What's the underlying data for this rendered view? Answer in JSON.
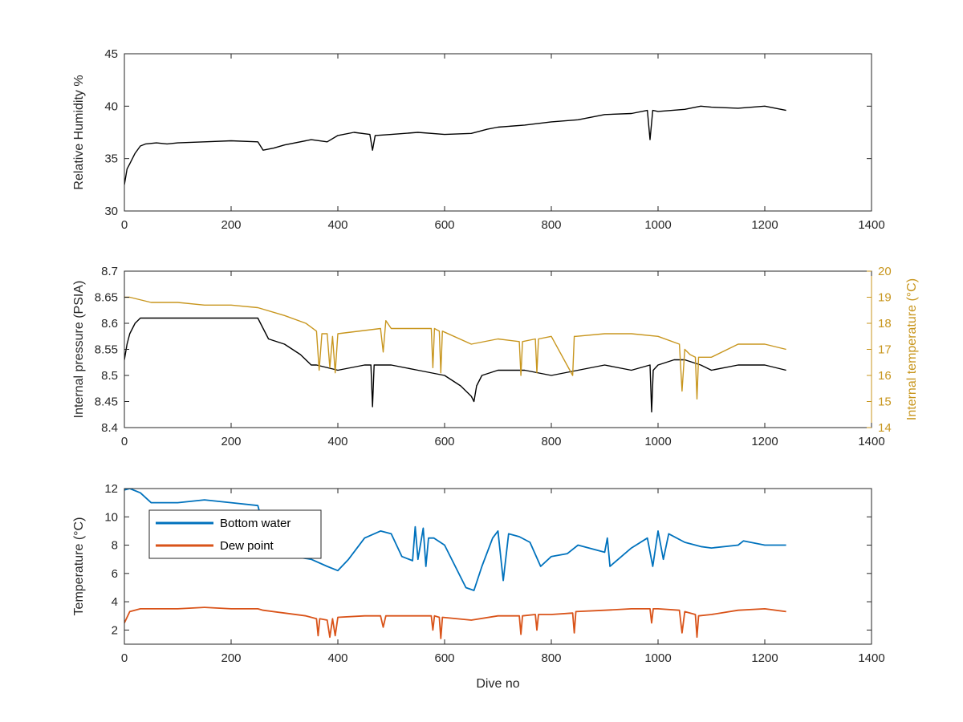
{
  "chart_data": [
    {
      "type": "line",
      "title": "",
      "xlabel": "",
      "ylabel": "Relative Humidity %",
      "xlim": [
        0,
        1400
      ],
      "ylim": [
        30,
        45
      ],
      "xticks": [
        0,
        200,
        400,
        600,
        800,
        1000,
        1200,
        1400
      ],
      "yticks": [
        30,
        35,
        40,
        45
      ],
      "series": [
        {
          "color": "#000000",
          "x": [
            0,
            5,
            10,
            20,
            30,
            40,
            60,
            80,
            100,
            150,
            200,
            250,
            260,
            280,
            300,
            350,
            380,
            400,
            430,
            460,
            465,
            470,
            500,
            550,
            600,
            650,
            680,
            700,
            750,
            800,
            850,
            900,
            950,
            980,
            985,
            990,
            1000,
            1050,
            1080,
            1100,
            1150,
            1200,
            1240
          ],
          "y": [
            32.5,
            34.0,
            34.5,
            35.5,
            36.2,
            36.4,
            36.5,
            36.4,
            36.5,
            36.6,
            36.7,
            36.6,
            35.8,
            36.0,
            36.3,
            36.8,
            36.6,
            37.2,
            37.5,
            37.3,
            35.8,
            37.2,
            37.3,
            37.5,
            37.3,
            37.4,
            37.8,
            38.0,
            38.2,
            38.5,
            38.7,
            39.2,
            39.3,
            39.6,
            36.8,
            39.6,
            39.5,
            39.7,
            40.0,
            39.9,
            39.8,
            40.0,
            39.6
          ]
        }
      ]
    },
    {
      "type": "line",
      "title": "",
      "xlabel": "",
      "ylabel": "Internal pressure (PSIA)",
      "y2label": "Internal temperature (°C)",
      "xlim": [
        0,
        1400
      ],
      "ylim": [
        8.4,
        8.7
      ],
      "y2lim": [
        14,
        20
      ],
      "xticks": [
        0,
        200,
        400,
        600,
        800,
        1000,
        1200,
        1400
      ],
      "yticks": [
        8.4,
        8.45,
        8.5,
        8.55,
        8.6,
        8.65,
        8.7
      ],
      "y2ticks": [
        14,
        15,
        16,
        17,
        18,
        19,
        20
      ],
      "series": [
        {
          "axis": "left",
          "color": "#000000",
          "x": [
            0,
            5,
            10,
            20,
            30,
            40,
            60,
            100,
            150,
            200,
            250,
            255,
            270,
            300,
            330,
            350,
            360,
            400,
            450,
            462,
            465,
            468,
            500,
            550,
            600,
            630,
            650,
            655,
            660,
            670,
            700,
            750,
            800,
            850,
            900,
            950,
            985,
            988,
            991,
            1000,
            1030,
            1050,
            1080,
            1100,
            1150,
            1200,
            1240
          ],
          "y": [
            8.53,
            8.56,
            8.58,
            8.6,
            8.61,
            8.61,
            8.61,
            8.61,
            8.61,
            8.61,
            8.61,
            8.6,
            8.57,
            8.56,
            8.54,
            8.52,
            8.52,
            8.51,
            8.52,
            8.52,
            8.44,
            8.52,
            8.52,
            8.51,
            8.5,
            8.48,
            8.46,
            8.45,
            8.48,
            8.5,
            8.51,
            8.51,
            8.5,
            8.51,
            8.52,
            8.51,
            8.52,
            8.43,
            8.51,
            8.52,
            8.53,
            8.53,
            8.52,
            8.51,
            8.52,
            8.52,
            8.51
          ]
        },
        {
          "axis": "right",
          "color": "#c8961e",
          "x": [
            0,
            10,
            50,
            100,
            150,
            200,
            250,
            300,
            340,
            360,
            365,
            370,
            380,
            385,
            390,
            395,
            400,
            480,
            485,
            490,
            500,
            550,
            575,
            578,
            581,
            590,
            593,
            596,
            650,
            700,
            740,
            743,
            746,
            770,
            773,
            776,
            800,
            840,
            843,
            846,
            900,
            950,
            1000,
            1040,
            1045,
            1050,
            1060,
            1070,
            1073,
            1076,
            1100,
            1150,
            1200,
            1240
          ],
          "y": [
            19.0,
            19.0,
            18.8,
            18.8,
            18.7,
            18.7,
            18.6,
            18.3,
            18.0,
            17.7,
            16.2,
            17.6,
            17.6,
            16.3,
            17.5,
            16.1,
            17.6,
            17.8,
            16.9,
            18.1,
            17.8,
            17.8,
            17.8,
            16.3,
            17.8,
            17.7,
            16.1,
            17.7,
            17.2,
            17.4,
            17.3,
            16.0,
            17.3,
            17.4,
            16.1,
            17.4,
            17.5,
            16.0,
            17.5,
            17.5,
            17.6,
            17.6,
            17.5,
            17.2,
            15.4,
            17.0,
            16.8,
            16.7,
            15.1,
            16.7,
            16.7,
            17.2,
            17.2,
            17.0
          ]
        }
      ]
    },
    {
      "type": "line",
      "title": "",
      "xlabel": "Dive no",
      "ylabel": "Temperature (°C)",
      "xlim": [
        0,
        1400
      ],
      "ylim": [
        1,
        12
      ],
      "xticks": [
        0,
        200,
        400,
        600,
        800,
        1000,
        1200,
        1400
      ],
      "yticks": [
        2,
        4,
        6,
        8,
        10,
        12
      ],
      "legend": "top-left",
      "series": [
        {
          "name": "Bottom water",
          "color": "#0072bd",
          "x": [
            0,
            10,
            30,
            50,
            100,
            150,
            200,
            250,
            270,
            300,
            350,
            380,
            400,
            420,
            450,
            480,
            500,
            520,
            540,
            545,
            550,
            560,
            565,
            570,
            580,
            600,
            620,
            640,
            655,
            670,
            690,
            700,
            710,
            720,
            740,
            760,
            780,
            800,
            830,
            850,
            900,
            905,
            910,
            950,
            980,
            990,
            1000,
            1010,
            1020,
            1050,
            1080,
            1100,
            1150,
            1160,
            1200,
            1240
          ],
          "y": [
            11.9,
            12.0,
            11.7,
            11.0,
            11.0,
            11.2,
            11.0,
            10.8,
            8.0,
            7.3,
            7.0,
            6.5,
            6.2,
            7.0,
            8.5,
            9.0,
            8.8,
            7.2,
            6.9,
            9.3,
            7.0,
            9.2,
            6.5,
            8.5,
            8.5,
            8.0,
            6.5,
            5.0,
            4.8,
            6.5,
            8.5,
            9.0,
            5.5,
            8.8,
            8.6,
            8.2,
            6.5,
            7.2,
            7.4,
            8.0,
            7.5,
            8.5,
            6.5,
            7.8,
            8.5,
            6.5,
            9.0,
            7.0,
            8.8,
            8.2,
            7.9,
            7.8,
            8.0,
            8.3,
            8.0,
            8.0
          ]
        },
        {
          "name": "Dew point",
          "color": "#d95319",
          "x": [
            0,
            10,
            30,
            50,
            100,
            150,
            200,
            250,
            260,
            300,
            340,
            360,
            363,
            366,
            380,
            385,
            390,
            395,
            400,
            450,
            480,
            485,
            490,
            500,
            550,
            575,
            578,
            581,
            590,
            593,
            596,
            650,
            700,
            740,
            743,
            746,
            770,
            773,
            776,
            800,
            840,
            843,
            846,
            900,
            950,
            985,
            988,
            991,
            1000,
            1040,
            1045,
            1050,
            1070,
            1073,
            1076,
            1100,
            1150,
            1200,
            1240
          ],
          "y": [
            2.5,
            3.3,
            3.5,
            3.5,
            3.5,
            3.6,
            3.5,
            3.5,
            3.4,
            3.2,
            3.0,
            2.8,
            1.6,
            2.8,
            2.7,
            1.5,
            2.8,
            1.6,
            2.9,
            3.0,
            3.0,
            2.2,
            3.0,
            3.0,
            3.0,
            3.0,
            2.0,
            3.0,
            2.9,
            1.4,
            2.9,
            2.7,
            3.0,
            3.0,
            1.7,
            3.0,
            3.1,
            2.0,
            3.1,
            3.1,
            3.2,
            1.8,
            3.3,
            3.4,
            3.5,
            3.5,
            2.5,
            3.5,
            3.5,
            3.4,
            1.8,
            3.3,
            3.1,
            1.5,
            3.0,
            3.1,
            3.4,
            3.5,
            3.3
          ]
        }
      ]
    }
  ]
}
